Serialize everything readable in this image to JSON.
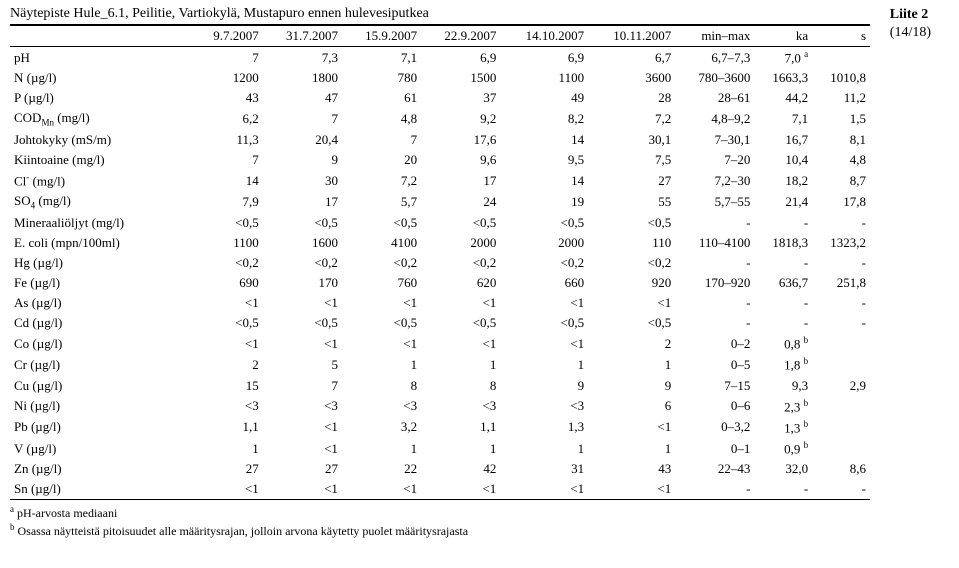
{
  "appendix": {
    "title": "Liite 2",
    "page": "(14/18)"
  },
  "title": "Näytepiste Hule_6.1, Peilitie, Vartiokylä, Mustapuro ennen hulevesiputkea",
  "columns": [
    "9.7.2007",
    "31.7.2007",
    "15.9.2007",
    "22.9.2007",
    "14.10.2007",
    "10.11.2007",
    "min–max",
    "ka",
    "s"
  ],
  "rows": [
    {
      "label": "pH",
      "v": [
        "7",
        "7,3",
        "7,1",
        "6,9",
        "6,9",
        "6,7",
        "6,7–7,3",
        "7,0 <sup>a</sup>",
        ""
      ]
    },
    {
      "label": "N (µg/l)",
      "v": [
        "1200",
        "1800",
        "780",
        "1500",
        "1100",
        "3600",
        "780–3600",
        "1663,3",
        "1010,8"
      ]
    },
    {
      "label": "P (µg/l)",
      "v": [
        "43",
        "47",
        "61",
        "37",
        "49",
        "28",
        "28–61",
        "44,2",
        "11,2"
      ]
    },
    {
      "label": "COD<sub>Mn</sub> (mg/l)",
      "v": [
        "6,2",
        "7",
        "4,8",
        "9,2",
        "8,2",
        "7,2",
        "4,8–9,2",
        "7,1",
        "1,5"
      ]
    },
    {
      "label": "Johtokyky (mS/m)",
      "v": [
        "11,3",
        "20,4",
        "7",
        "17,6",
        "14",
        "30,1",
        "7–30,1",
        "16,7",
        "8,1"
      ]
    },
    {
      "label": "Kiintoaine (mg/l)",
      "v": [
        "7",
        "9",
        "20",
        "9,6",
        "9,5",
        "7,5",
        "7–20",
        "10,4",
        "4,8"
      ]
    },
    {
      "label": "Cl<sup>-</sup> (mg/l)",
      "v": [
        "14",
        "30",
        "7,2",
        "17",
        "14",
        "27",
        "7,2–30",
        "18,2",
        "8,7"
      ]
    },
    {
      "label": "SO<sub>4</sub> (mg/l)",
      "v": [
        "7,9",
        "17",
        "5,7",
        "24",
        "19",
        "55",
        "5,7–55",
        "21,4",
        "17,8"
      ]
    },
    {
      "label": "Mineraaliöljyt (mg/l)",
      "v": [
        "<0,5",
        "<0,5",
        "<0,5",
        "<0,5",
        "<0,5",
        "<0,5",
        "-",
        "-",
        "-"
      ]
    },
    {
      "label": "E. coli (mpn/100ml)",
      "v": [
        "1100",
        "1600",
        "4100",
        "2000",
        "2000",
        "110",
        "110–4100",
        "1818,3",
        "1323,2"
      ]
    },
    {
      "label": "Hg (µg/l)",
      "v": [
        "<0,2",
        "<0,2",
        "<0,2",
        "<0,2",
        "<0,2",
        "<0,2",
        "-",
        "-",
        "-"
      ]
    },
    {
      "label": "Fe (µg/l)",
      "v": [
        "690",
        "170",
        "760",
        "620",
        "660",
        "920",
        "170–920",
        "636,7",
        "251,8"
      ]
    },
    {
      "label": "As (µg/l)",
      "v": [
        "<1",
        "<1",
        "<1",
        "<1",
        "<1",
        "<1",
        "-",
        "-",
        "-"
      ]
    },
    {
      "label": "Cd (µg/l)",
      "v": [
        "<0,5",
        "<0,5",
        "<0,5",
        "<0,5",
        "<0,5",
        "<0,5",
        "-",
        "-",
        "-"
      ]
    },
    {
      "label": "Co (µg/l)",
      "v": [
        "<1",
        "<1",
        "<1",
        "<1",
        "<1",
        "2",
        "0–2",
        "0,8 <sup>b</sup>",
        ""
      ]
    },
    {
      "label": "Cr (µg/l)",
      "v": [
        "2",
        "5",
        "1",
        "1",
        "1",
        "1",
        "0–5",
        "1,8 <sup>b</sup>",
        ""
      ]
    },
    {
      "label": "Cu (µg/l)",
      "v": [
        "15",
        "7",
        "8",
        "8",
        "9",
        "9",
        "7–15",
        "9,3",
        "2,9"
      ]
    },
    {
      "label": "Ni (µg/l)",
      "v": [
        "<3",
        "<3",
        "<3",
        "<3",
        "<3",
        "6",
        "0–6",
        "2,3 <sup>b</sup>",
        ""
      ]
    },
    {
      "label": "Pb (µg/l)",
      "v": [
        "1,1",
        "<1",
        "3,2",
        "1,1",
        "1,3",
        "<1",
        "0–3,2",
        "1,3 <sup>b</sup>",
        ""
      ]
    },
    {
      "label": "V (µg/l)",
      "v": [
        "1",
        "<1",
        "1",
        "1",
        "1",
        "1",
        "0–1",
        "0,9 <sup>b</sup>",
        ""
      ]
    },
    {
      "label": "Zn (µg/l)",
      "v": [
        "27",
        "27",
        "22",
        "42",
        "31",
        "43",
        "22–43",
        "32,0",
        "8,6"
      ]
    },
    {
      "label": "Sn (µg/l)",
      "v": [
        "<1",
        "<1",
        "<1",
        "<1",
        "<1",
        "<1",
        "-",
        "-",
        "-"
      ]
    }
  ],
  "footnotes": {
    "a": "pH-arvosta mediaani",
    "b": "Osassa näytteistä pitoisuudet alle määritysrajan, jolloin arvona käytetty puolet määritysrajasta"
  }
}
